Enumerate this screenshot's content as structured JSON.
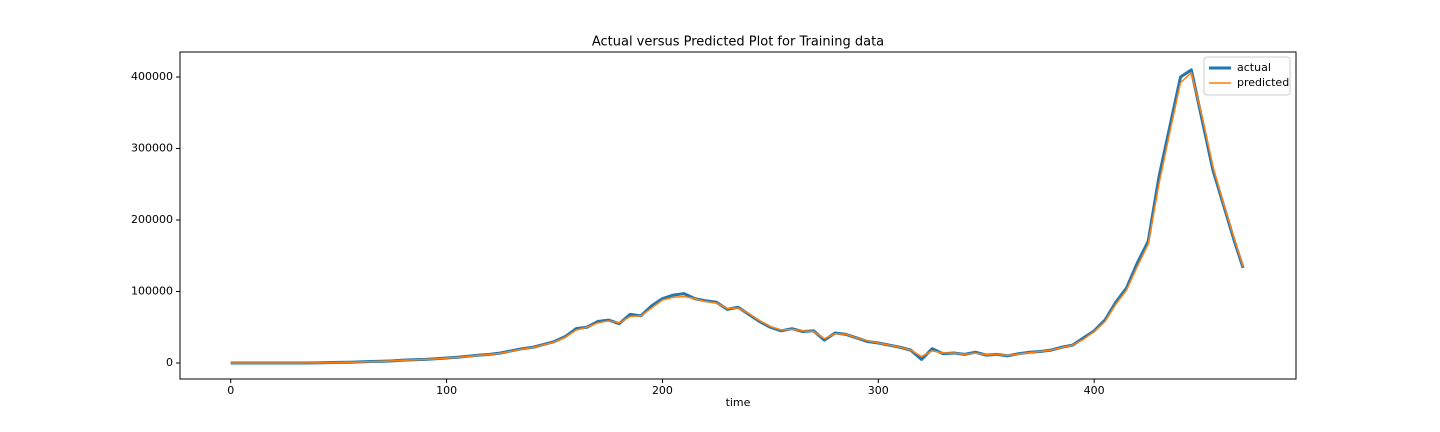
{
  "chart_data": {
    "type": "line",
    "title": "Actual versus Predicted Plot for Training data",
    "x_label": "time",
    "x": [
      0,
      5,
      10,
      15,
      20,
      25,
      30,
      35,
      40,
      45,
      50,
      55,
      60,
      65,
      70,
      75,
      80,
      85,
      90,
      95,
      100,
      105,
      110,
      115,
      120,
      125,
      130,
      135,
      140,
      145,
      150,
      155,
      160,
      165,
      170,
      175,
      180,
      185,
      190,
      195,
      200,
      205,
      210,
      215,
      220,
      225,
      230,
      235,
      240,
      245,
      250,
      255,
      260,
      265,
      270,
      275,
      280,
      285,
      290,
      295,
      300,
      305,
      310,
      315,
      320,
      325,
      330,
      335,
      340,
      345,
      350,
      355,
      360,
      365,
      370,
      375,
      380,
      385,
      390,
      395,
      400,
      405,
      410,
      415,
      420,
      425,
      430,
      435,
      440,
      445,
      450,
      455,
      460,
      465,
      469
    ],
    "series": [
      {
        "name": "actual",
        "color": "#1f77b4",
        "values": [
          0,
          0,
          0,
          0,
          0,
          0,
          0,
          0,
          200,
          500,
          800,
          1000,
          1500,
          2000,
          2500,
          3000,
          4000,
          4500,
          5000,
          6000,
          7000,
          8000,
          9500,
          11000,
          12000,
          14000,
          17000,
          20000,
          22000,
          26000,
          30000,
          37000,
          48000,
          50000,
          58000,
          60000,
          55000,
          68000,
          66000,
          80000,
          90000,
          95000,
          97000,
          90000,
          87000,
          85000,
          75000,
          78000,
          68000,
          58000,
          50000,
          45000,
          48000,
          44000,
          45000,
          32000,
          42000,
          40000,
          35000,
          30000,
          28000,
          25000,
          22000,
          18000,
          5000,
          20000,
          13000,
          14000,
          12000,
          15000,
          11000,
          12000,
          10000,
          13000,
          15000,
          16000,
          18000,
          22000,
          25000,
          35000,
          45000,
          60000,
          85000,
          105000,
          140000,
          170000,
          260000,
          330000,
          400000,
          410000,
          340000,
          270000,
          220000,
          170000,
          133000
        ]
      },
      {
        "name": "predicted",
        "color": "#ff7f0e",
        "values": [
          0,
          0,
          0,
          0,
          0,
          0,
          0,
          0,
          100,
          400,
          700,
          1000,
          1400,
          1900,
          2400,
          3000,
          3800,
          4400,
          5000,
          5800,
          6800,
          7800,
          9200,
          10800,
          11800,
          13600,
          16500,
          19500,
          21800,
          25500,
          29500,
          36000,
          46000,
          50000,
          56000,
          59000,
          56000,
          65000,
          66000,
          77000,
          88000,
          92000,
          93000,
          90000,
          86000,
          84000,
          76000,
          77000,
          69000,
          59000,
          51000,
          46000,
          47000,
          45000,
          44000,
          34000,
          41000,
          40000,
          35000,
          31000,
          28000,
          25000,
          22000,
          18000,
          9000,
          17000,
          14000,
          14000,
          12000,
          14000,
          11500,
          12000,
          10500,
          12500,
          14500,
          16000,
          18000,
          21500,
          25000,
          33000,
          44000,
          58000,
          82000,
          102000,
          135000,
          166000,
          250000,
          322000,
          392000,
          406000,
          345000,
          275000,
          222000,
          173000,
          135000
        ]
      }
    ],
    "xlim": [
      -23.5,
      493.5
    ],
    "xticks": [
      0,
      100,
      200,
      300,
      400
    ],
    "ylim": [
      -22400,
      435000
    ],
    "yticks": [
      0,
      100000,
      200000,
      300000,
      400000
    ],
    "legend": "upper right"
  }
}
